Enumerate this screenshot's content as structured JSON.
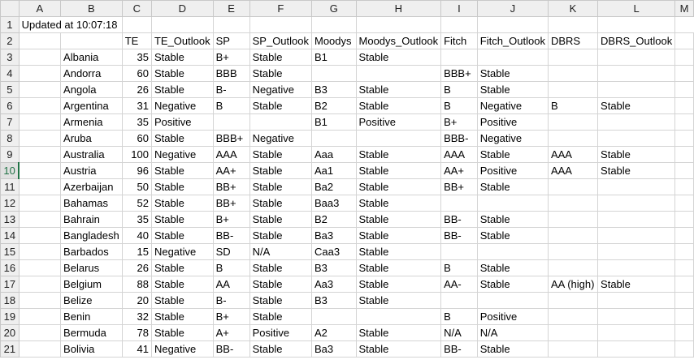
{
  "columns": [
    "A",
    "B",
    "C",
    "D",
    "E",
    "F",
    "G",
    "H",
    "I",
    "J",
    "K",
    "L",
    "M"
  ],
  "row_numbers": [
    "1",
    "2",
    "3",
    "4",
    "5",
    "6",
    "7",
    "8",
    "9",
    "10",
    "11",
    "12",
    "13",
    "14",
    "15",
    "16",
    "17",
    "18",
    "19",
    "20",
    "21"
  ],
  "updated_text": "Updated at 10:07:18",
  "headers": [
    "TE",
    "TE_Outlook",
    "SP",
    "SP_Outlook",
    "Moodys",
    "Moodys_Outlook",
    "Fitch",
    "Fitch_Outlook",
    "DBRS",
    "DBRS_Outlook"
  ],
  "rows": [
    {
      "country": "Albania",
      "te": "35",
      "te_outlook": "Stable",
      "sp": "B+",
      "sp_outlook": "Stable",
      "moodys": "B1",
      "moodys_outlook": "Stable",
      "fitch": "",
      "fitch_outlook": "",
      "dbrs": "",
      "dbrs_outlook": ""
    },
    {
      "country": "Andorra",
      "te": "60",
      "te_outlook": "Stable",
      "sp": "BBB",
      "sp_outlook": "Stable",
      "moodys": "",
      "moodys_outlook": "",
      "fitch": "BBB+",
      "fitch_outlook": "Stable",
      "dbrs": "",
      "dbrs_outlook": ""
    },
    {
      "country": "Angola",
      "te": "26",
      "te_outlook": "Stable",
      "sp": "B-",
      "sp_outlook": "Negative",
      "moodys": "B3",
      "moodys_outlook": "Stable",
      "fitch": "B",
      "fitch_outlook": "Stable",
      "dbrs": "",
      "dbrs_outlook": ""
    },
    {
      "country": "Argentina",
      "te": "31",
      "te_outlook": "Negative",
      "sp": "B",
      "sp_outlook": "Stable",
      "moodys": "B2",
      "moodys_outlook": "Stable",
      "fitch": "B",
      "fitch_outlook": "Negative",
      "dbrs": "B",
      "dbrs_outlook": "Stable"
    },
    {
      "country": "Armenia",
      "te": "35",
      "te_outlook": "Positive",
      "sp": "",
      "sp_outlook": "",
      "moodys": "B1",
      "moodys_outlook": "Positive",
      "fitch": "B+",
      "fitch_outlook": "Positive",
      "dbrs": "",
      "dbrs_outlook": ""
    },
    {
      "country": "Aruba",
      "te": "60",
      "te_outlook": "Stable",
      "sp": "BBB+",
      "sp_outlook": "Negative",
      "moodys": "",
      "moodys_outlook": "",
      "fitch": "BBB-",
      "fitch_outlook": "Negative",
      "dbrs": "",
      "dbrs_outlook": ""
    },
    {
      "country": "Australia",
      "te": "100",
      "te_outlook": "Negative",
      "sp": "AAA",
      "sp_outlook": "Stable",
      "moodys": "Aaa",
      "moodys_outlook": "Stable",
      "fitch": "AAA",
      "fitch_outlook": "Stable",
      "dbrs": "AAA",
      "dbrs_outlook": "Stable"
    },
    {
      "country": "Austria",
      "te": "96",
      "te_outlook": "Stable",
      "sp": "AA+",
      "sp_outlook": "Stable",
      "moodys": "Aa1",
      "moodys_outlook": "Stable",
      "fitch": "AA+",
      "fitch_outlook": "Positive",
      "dbrs": "AAA",
      "dbrs_outlook": "Stable"
    },
    {
      "country": "Azerbaijan",
      "te": "50",
      "te_outlook": "Stable",
      "sp": "BB+",
      "sp_outlook": "Stable",
      "moodys": "Ba2",
      "moodys_outlook": "Stable",
      "fitch": "BB+",
      "fitch_outlook": "Stable",
      "dbrs": "",
      "dbrs_outlook": ""
    },
    {
      "country": "Bahamas",
      "te": "52",
      "te_outlook": "Stable",
      "sp": "BB+",
      "sp_outlook": "Stable",
      "moodys": "Baa3",
      "moodys_outlook": "Stable",
      "fitch": "",
      "fitch_outlook": "",
      "dbrs": "",
      "dbrs_outlook": ""
    },
    {
      "country": "Bahrain",
      "te": "35",
      "te_outlook": "Stable",
      "sp": "B+",
      "sp_outlook": "Stable",
      "moodys": "B2",
      "moodys_outlook": "Stable",
      "fitch": "BB-",
      "fitch_outlook": "Stable",
      "dbrs": "",
      "dbrs_outlook": ""
    },
    {
      "country": "Bangladesh",
      "te": "40",
      "te_outlook": "Stable",
      "sp": "BB-",
      "sp_outlook": "Stable",
      "moodys": "Ba3",
      "moodys_outlook": "Stable",
      "fitch": "BB-",
      "fitch_outlook": "Stable",
      "dbrs": "",
      "dbrs_outlook": ""
    },
    {
      "country": "Barbados",
      "te": "15",
      "te_outlook": "Negative",
      "sp": "SD",
      "sp_outlook": "N/A",
      "moodys": "Caa3",
      "moodys_outlook": "Stable",
      "fitch": "",
      "fitch_outlook": "",
      "dbrs": "",
      "dbrs_outlook": ""
    },
    {
      "country": "Belarus",
      "te": "26",
      "te_outlook": "Stable",
      "sp": "B",
      "sp_outlook": "Stable",
      "moodys": "B3",
      "moodys_outlook": "Stable",
      "fitch": "B",
      "fitch_outlook": "Stable",
      "dbrs": "",
      "dbrs_outlook": ""
    },
    {
      "country": "Belgium",
      "te": "88",
      "te_outlook": "Stable",
      "sp": "AA",
      "sp_outlook": "Stable",
      "moodys": "Aa3",
      "moodys_outlook": "Stable",
      "fitch": "AA-",
      "fitch_outlook": "Stable",
      "dbrs": "AA (high)",
      "dbrs_outlook": "Stable"
    },
    {
      "country": "Belize",
      "te": "20",
      "te_outlook": "Stable",
      "sp": "B-",
      "sp_outlook": "Stable",
      "moodys": "B3",
      "moodys_outlook": "Stable",
      "fitch": "",
      "fitch_outlook": "",
      "dbrs": "",
      "dbrs_outlook": ""
    },
    {
      "country": "Benin",
      "te": "32",
      "te_outlook": "Stable",
      "sp": "B+",
      "sp_outlook": "Stable",
      "moodys": "",
      "moodys_outlook": "",
      "fitch": "B",
      "fitch_outlook": "Positive",
      "dbrs": "",
      "dbrs_outlook": ""
    },
    {
      "country": "Bermuda",
      "te": "78",
      "te_outlook": "Stable",
      "sp": "A+",
      "sp_outlook": "Positive",
      "moodys": "A2",
      "moodys_outlook": "Stable",
      "fitch": "N/A",
      "fitch_outlook": "N/A",
      "dbrs": "",
      "dbrs_outlook": ""
    },
    {
      "country": "Bolivia",
      "te": "41",
      "te_outlook": "Negative",
      "sp": "BB-",
      "sp_outlook": "Stable",
      "moodys": "Ba3",
      "moodys_outlook": "Stable",
      "fitch": "BB-",
      "fitch_outlook": "Stable",
      "dbrs": "",
      "dbrs_outlook": ""
    }
  ],
  "selected_row": "10",
  "colors": {
    "header_bg": "#efefef",
    "grid": "#d4d4d4",
    "selection": "#217346"
  }
}
